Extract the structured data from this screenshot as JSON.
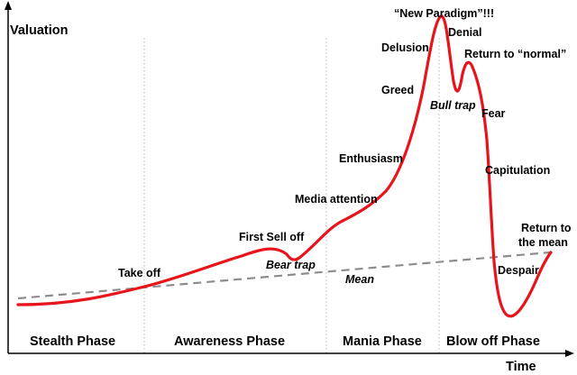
{
  "axes": {
    "y_title": "Valuation",
    "x_title": "Time"
  },
  "phases": [
    "Stealth Phase",
    "Awareness Phase",
    "Mania Phase",
    "Blow off Phase"
  ],
  "labels": {
    "take_off": "Take off",
    "first_sell_off": "First Sell off",
    "bear_trap": "Bear trap",
    "media_attention": "Media attention",
    "enthusiasm": "Enthusiasm",
    "greed": "Greed",
    "delusion": "Delusion",
    "new_paradigm": "“New Paradigm”!!!",
    "denial": "Denial",
    "return_to_normal": "Return to “normal”",
    "bull_trap": "Bull trap",
    "fear": "Fear",
    "capitulation": "Capitulation",
    "return_to_the_mean_line1": "Return to",
    "return_to_the_mean_line2": "the mean",
    "despair": "Despair",
    "mean": "Mean"
  },
  "colors": {
    "curve": "#e8141b",
    "mean_line": "#8c8c8c",
    "axis": "#000000",
    "divider": "#b8b8b8"
  }
}
